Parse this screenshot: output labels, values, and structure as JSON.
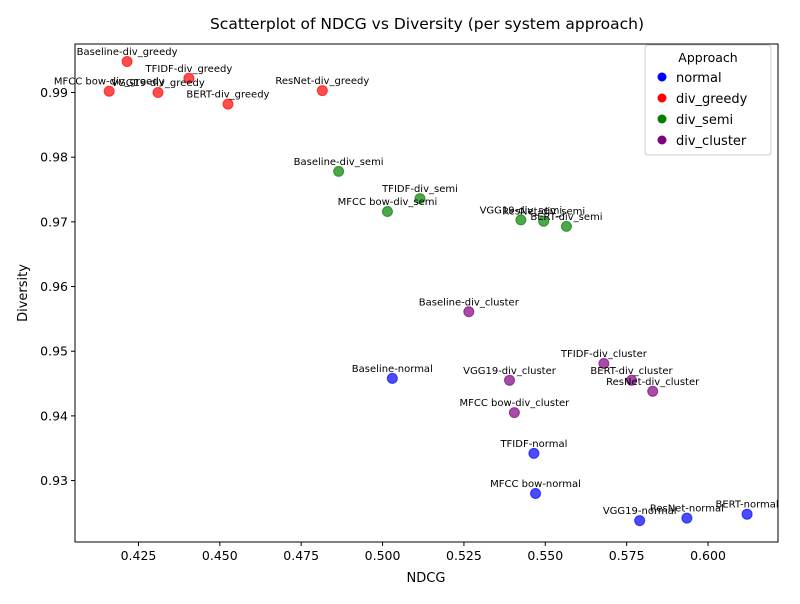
{
  "chart_data": {
    "type": "scatter",
    "title": "Scatterplot of NDCG vs Diversity (per system approach)",
    "xlabel": "NDCG",
    "ylabel": "Diversity",
    "xlim": [
      0.4055,
      0.6215
    ],
    "ylim": [
      0.9205,
      0.9975
    ],
    "xticks": [
      "0.425",
      "0.450",
      "0.475",
      "0.500",
      "0.525",
      "0.550",
      "0.575",
      "0.600"
    ],
    "yticks": [
      "0.93",
      "0.94",
      "0.95",
      "0.96",
      "0.97",
      "0.98",
      "0.99"
    ],
    "grid": false,
    "legend": {
      "title": "Approach",
      "placement": "top-right",
      "entries": [
        {
          "name": "normal",
          "color": "#0000ff"
        },
        {
          "name": "div_greedy",
          "color": "#ff0000"
        },
        {
          "name": "div_semi",
          "color": "#008000"
        },
        {
          "name": "div_cluster",
          "color": "#800080"
        }
      ]
    },
    "series": [
      {
        "name": "normal",
        "color": "#0000ff",
        "points": [
          {
            "label": "Baseline-normal",
            "x": 0.503,
            "y": 0.9458
          },
          {
            "label": "TFIDF-normal",
            "x": 0.5465,
            "y": 0.9342
          },
          {
            "label": "MFCC bow-normal",
            "x": 0.547,
            "y": 0.928
          },
          {
            "label": "VGG19-normal",
            "x": 0.579,
            "y": 0.9238
          },
          {
            "label": "ResNet-normal",
            "x": 0.5935,
            "y": 0.9242
          },
          {
            "label": "BERT-normal",
            "x": 0.612,
            "y": 0.9248
          }
        ]
      },
      {
        "name": "div_greedy",
        "color": "#ff0000",
        "points": [
          {
            "label": "Baseline-div_greedy",
            "x": 0.4215,
            "y": 0.9948
          },
          {
            "label": "TFIDF-div_greedy",
            "x": 0.4405,
            "y": 0.9922
          },
          {
            "label": "MFCC bow-div_greedy",
            "x": 0.416,
            "y": 0.9902
          },
          {
            "label": "VGG19-div_greedy",
            "x": 0.431,
            "y": 0.99
          },
          {
            "label": "BERT-div_greedy",
            "x": 0.4525,
            "y": 0.9882
          },
          {
            "label": "ResNet-div_greedy",
            "x": 0.4815,
            "y": 0.9903
          }
        ]
      },
      {
        "name": "div_semi",
        "color": "#008000",
        "points": [
          {
            "label": "Baseline-div_semi",
            "x": 0.4865,
            "y": 0.9778
          },
          {
            "label": "TFIDF-div_semi",
            "x": 0.5115,
            "y": 0.9736
          },
          {
            "label": "MFCC bow-div_semi",
            "x": 0.5015,
            "y": 0.9716
          },
          {
            "label": "VGG19-div_semi",
            "x": 0.5425,
            "y": 0.9703
          },
          {
            "label": "ResNet-div_semi",
            "x": 0.5495,
            "y": 0.9701
          },
          {
            "label": "BERT-div_semi",
            "x": 0.5565,
            "y": 0.9693
          }
        ]
      },
      {
        "name": "div_cluster",
        "color": "#800080",
        "points": [
          {
            "label": "Baseline-div_cluster",
            "x": 0.5265,
            "y": 0.9561
          },
          {
            "label": "TFIDF-div_cluster",
            "x": 0.568,
            "y": 0.9481
          },
          {
            "label": "VGG19-div_cluster",
            "x": 0.539,
            "y": 0.9455
          },
          {
            "label": "BERT-div_cluster",
            "x": 0.5765,
            "y": 0.9455
          },
          {
            "label": "ResNet-div_cluster",
            "x": 0.583,
            "y": 0.9438
          },
          {
            "label": "MFCC bow-div_cluster",
            "x": 0.5405,
            "y": 0.9405
          }
        ]
      }
    ]
  }
}
